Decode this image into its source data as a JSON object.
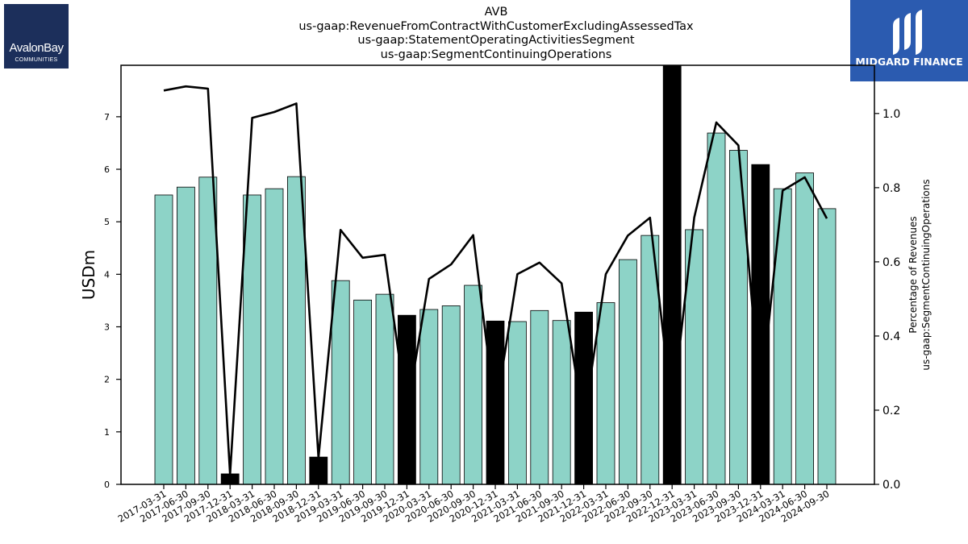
{
  "header": {
    "ticker": "AVB",
    "title_lines": [
      "us-gaap:RevenueFromContractWithCustomerExcludingAssessedTax",
      "us-gaap:StatementOperatingActivitiesSegment",
      "us-gaap:SegmentContinuingOperations"
    ]
  },
  "logos": {
    "left": {
      "brand": "AvalonBay",
      "sub": "COMMUNITIES",
      "bg": "#1c2f5b"
    },
    "right": {
      "brand": "MIDGARD FINANCE",
      "bg": "#2b5bb0"
    }
  },
  "chart_data": {
    "type": "bar",
    "categories": [
      "2017-03-31",
      "2017-06-30",
      "2017-09-30",
      "2017-12-31",
      "2018-03-31",
      "2018-06-30",
      "2018-09-30",
      "2018-12-31",
      "2019-03-31",
      "2019-06-30",
      "2019-09-30",
      "2019-12-31",
      "2020-03-31",
      "2020-06-30",
      "2020-09-30",
      "2020-12-31",
      "2021-03-31",
      "2021-06-30",
      "2021-09-30",
      "2021-12-31",
      "2022-03-31",
      "2022-06-30",
      "2022-09-30",
      "2022-12-31",
      "2023-03-31",
      "2023-06-30",
      "2023-09-30",
      "2023-12-31",
      "2024-03-31",
      "2024-06-30",
      "2024-09-30"
    ],
    "series": [
      {
        "axis": "left",
        "values": [
          5.51,
          5.66,
          5.85,
          0.2,
          5.51,
          5.63,
          5.86,
          0.52,
          3.88,
          3.51,
          3.62,
          3.22,
          3.33,
          3.4,
          3.79,
          3.11,
          3.1,
          3.31,
          3.12,
          3.28,
          3.46,
          4.28,
          4.74,
          7.98,
          4.85,
          6.69,
          6.36,
          6.09,
          5.63,
          5.93,
          5.25
        ],
        "highlight": [
          false,
          false,
          false,
          true,
          false,
          false,
          false,
          true,
          false,
          false,
          false,
          true,
          false,
          false,
          false,
          true,
          false,
          false,
          false,
          true,
          false,
          false,
          false,
          true,
          false,
          false,
          false,
          true,
          false,
          false,
          false
        ]
      },
      {
        "axis": "right",
        "type": "line",
        "values": [
          1.062,
          1.073,
          1.067,
          0.026,
          0.988,
          1.004,
          1.027,
          0.071,
          0.686,
          0.611,
          0.619,
          0.193,
          0.554,
          0.593,
          0.672,
          0.192,
          0.567,
          0.598,
          0.542,
          0.165,
          0.567,
          0.671,
          0.719,
          0.193,
          0.719,
          0.976,
          0.914,
          0.224,
          0.792,
          0.828,
          0.717
        ]
      }
    ],
    "ylabel": "USDm",
    "ylabel_right": [
      "Percentage of Revenues",
      "us-gaap:SegmentContinuingOperations"
    ],
    "ylim": [
      0,
      7.98
    ],
    "ylim_right": [
      0,
      1.13
    ],
    "yticks": [
      0,
      1,
      2,
      3,
      4,
      5,
      6,
      7
    ],
    "yticks_right": [
      0.0,
      0.2,
      0.4,
      0.6,
      0.8,
      1.0
    ],
    "colors": {
      "bar": "#8dd3c7",
      "highlight": "#000000",
      "line": "#000000"
    },
    "grid": false
  }
}
